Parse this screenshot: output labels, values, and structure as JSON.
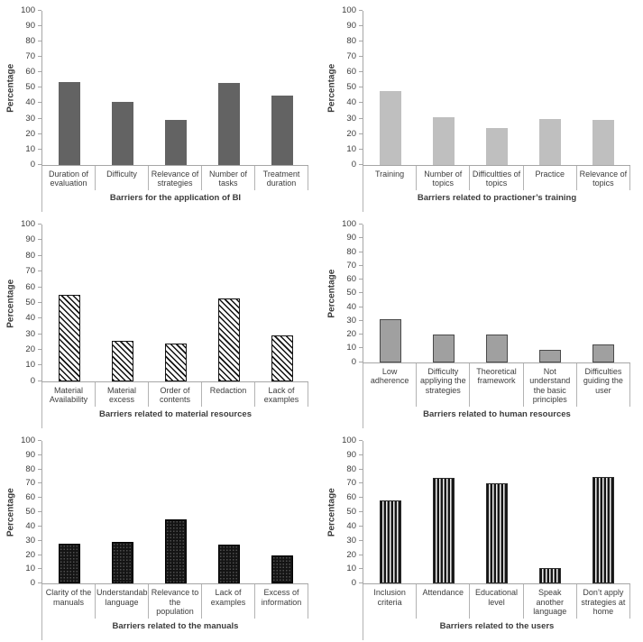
{
  "page": {
    "background": "#ffffff",
    "figure_name": "barriers-bar-charts-grid",
    "axis_line_color": "#a6a6a6",
    "separator_color": "#b3b3b3",
    "text_color": "#3c3c3c"
  },
  "chart_data": [
    {
      "type": "bar",
      "name": "barriers-application-of-bi",
      "xlabel": "Barriers for the application of BI",
      "ylabel": "Percentage",
      "categories": [
        "Duration of evaluation",
        "Difficulty",
        "Relevance of strategies",
        "Number of tasks",
        "Treatment duration"
      ],
      "values": [
        54,
        41,
        29,
        53,
        45
      ],
      "ylim": [
        0,
        100
      ],
      "ytick_step": 10,
      "grid": false,
      "legend": false,
      "bar_style": "solid-dark",
      "bar_color": "#636363"
    },
    {
      "type": "bar",
      "name": "barriers-practitioner-training",
      "xlabel": "Barriers related to practioner’s training",
      "ylabel": "Percentage",
      "categories": [
        "Training",
        "Number of topics",
        "Difficultties of topics",
        "Practice",
        "Relevance of topics"
      ],
      "values": [
        48,
        31,
        24,
        30,
        29
      ],
      "ylim": [
        0,
        100
      ],
      "ytick_step": 10,
      "grid": false,
      "legend": false,
      "bar_style": "solid-light",
      "bar_color": "#bfbfbf"
    },
    {
      "type": "bar",
      "name": "barriers-material-resources",
      "xlabel": "Barriers related to material resources",
      "ylabel": "Percentage",
      "categories": [
        "Material Availability",
        "Material excess",
        "Order of contents",
        "Redaction",
        "Lack of examples"
      ],
      "values": [
        55,
        26,
        24,
        53,
        29
      ],
      "ylim": [
        0,
        100
      ],
      "ytick_step": 10,
      "grid": false,
      "legend": false,
      "bar_style": "diagonal-hatch",
      "pattern_colors": [
        "#111111",
        "#fafafa"
      ]
    },
    {
      "type": "bar",
      "name": "barriers-human-resources",
      "xlabel": "Barriers related to human resources",
      "ylabel": "Percentage",
      "categories": [
        "Low adherence",
        "Difficulty appliying the strategies",
        "Theoretical framework",
        "Not understand the basic principles",
        "Difficulties guiding the user"
      ],
      "values": [
        31,
        20,
        20,
        9,
        13
      ],
      "ylim": [
        0,
        100
      ],
      "ytick_step": 10,
      "grid": false,
      "legend": false,
      "bar_style": "gray-outline",
      "bar_color": "#a0a0a0",
      "bar_border_color": "#4a4a4a"
    },
    {
      "type": "bar",
      "name": "barriers-manuals",
      "xlabel": "Barriers related to the manuals",
      "ylabel": "Percentage",
      "categories": [
        "Clarity of the manuals",
        "Understandable language",
        "Relevance to the population",
        "Lack of examples",
        "Excess of information"
      ],
      "values": [
        28,
        29,
        45,
        27,
        20
      ],
      "ylim": [
        0,
        100
      ],
      "ytick_step": 10,
      "grid": false,
      "legend": false,
      "bar_style": "dotted-black",
      "pattern_colors": [
        "#141414",
        "#4f4f4f"
      ]
    },
    {
      "type": "bar",
      "name": "barriers-users",
      "xlabel": "Barriers related to the users",
      "ylabel": "Percentage",
      "categories": [
        "Inclusion criteria",
        "Attendance",
        "Educational level",
        "Speak another language",
        "Don’t apply strategies at home"
      ],
      "values": [
        58,
        74,
        70,
        11,
        75
      ],
      "ylim": [
        0,
        100
      ],
      "ytick_step": 10,
      "grid": false,
      "legend": false,
      "bar_style": "vertical-stripes",
      "pattern_colors": [
        "#161616",
        "#ececec",
        "#8f8f8f"
      ]
    }
  ]
}
